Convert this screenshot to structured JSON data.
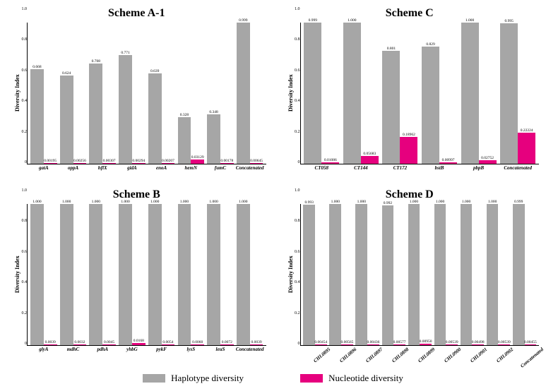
{
  "legend": {
    "hap": "Haplotype diversity",
    "nuc": "Nucleotide diversity"
  },
  "ylabel": "Diversity Index",
  "colors": {
    "hap": "#a6a6a6",
    "nuc": "#e6007e",
    "bg": "#ffffff",
    "axis": "#000000"
  },
  "panels": [
    {
      "id": "A1",
      "title": "Scheme A-1",
      "ymax": 1.0,
      "ytick_step": 0.2,
      "rotate_labels": false,
      "categories": [
        "gatA",
        "oppA",
        "hflX",
        "gidA",
        "enoA",
        "hemN",
        "fumC",
        "Concatenated"
      ],
      "hap": [
        0.668,
        0.624,
        0.708,
        0.771,
        0.639,
        0.328,
        0.348,
        0.999
      ],
      "nuc": [
        0.00195,
        0.00256,
        0.00307,
        0.00294,
        0.00207,
        0.03129,
        0.00178,
        0.00645
      ],
      "hap_labels": [
        "0.668",
        "0.624",
        "0.708",
        "0.771",
        "0.639",
        "0.328",
        "0.348",
        "0.999"
      ],
      "nuc_labels": [
        "0.00195",
        "0.00256",
        "0.00307",
        "0.00294",
        "0.00207",
        "0.03129",
        "0.00178",
        "0.00645"
      ]
    },
    {
      "id": "C",
      "title": "Scheme C",
      "ymax": 1.0,
      "ytick_step": 0.2,
      "rotate_labels": false,
      "categories": [
        "CT058",
        "CT144",
        "CT172",
        "bstB",
        "pbpB",
        "Concatenated"
      ],
      "hap": [
        0.999,
        1.0,
        0.801,
        0.829,
        1.0,
        0.995
      ],
      "nuc": [
        0.01086,
        0.05683,
        0.18962,
        0.00997,
        0.02752,
        0.22224
      ],
      "hap_labels": [
        "0.999",
        "1.000",
        "0.801",
        "0.829",
        "1.000",
        "0.995"
      ],
      "nuc_labels": [
        "0.01086",
        "0.05683",
        "0.18962",
        "0.00997",
        "0.02752",
        "0.22224"
      ]
    },
    {
      "id": "B",
      "title": "Scheme B",
      "ymax": 1.0,
      "ytick_step": 0.2,
      "rotate_labels": false,
      "categories": [
        "glyA",
        "mdhC",
        "pdhA",
        "yhbG",
        "pykF",
        "lysS",
        "leuS",
        "Concatenated"
      ],
      "hap": [
        1.0,
        1.0,
        1.0,
        1.0,
        1.0,
        1.0,
        1.0,
        1.0
      ],
      "nuc": [
        0.0039,
        0.0032,
        0.0045,
        0.0168,
        0.0054,
        0.006,
        0.0072,
        0.0039
      ],
      "hap_labels": [
        "1.000",
        "1.000",
        "1.000",
        "1.000",
        "1.000",
        "1.000",
        "1.000",
        "1.000"
      ],
      "nuc_labels": [
        "0.0039",
        "0.0032",
        "0.0045",
        "0.0168",
        "0.0054",
        "0.0060",
        "0.0072",
        "0.0039"
      ]
    },
    {
      "id": "D",
      "title": "Scheme D",
      "ymax": 1.0,
      "ytick_step": 0.2,
      "rotate_labels": true,
      "categories": [
        "CHL0895",
        "CHL0896",
        "CHL0897",
        "CHL0898",
        "CHL0899",
        "CHL0900",
        "CHL0901",
        "CHL0902",
        "Concatenated"
      ],
      "hap": [
        0.993,
        1.0,
        1.0,
        0.992,
        1.0,
        1.0,
        1.0,
        1.0,
        0.999
      ],
      "nuc": [
        0.00454,
        0.00565,
        0.00436,
        0.00577,
        0.0095,
        0.00539,
        0.00498,
        0.00539,
        0.00455
      ],
      "hap_labels": [
        "0.993",
        "1.000",
        "1.000",
        "0.992",
        "1.000",
        "1.000",
        "1.000",
        "1.000",
        "0.999"
      ],
      "nuc_labels": [
        "0.00454",
        "0.00565",
        "0.00436",
        "0.00577",
        "0.00950",
        "0.00539",
        "0.00498",
        "0.00539",
        "0.00455"
      ]
    }
  ]
}
